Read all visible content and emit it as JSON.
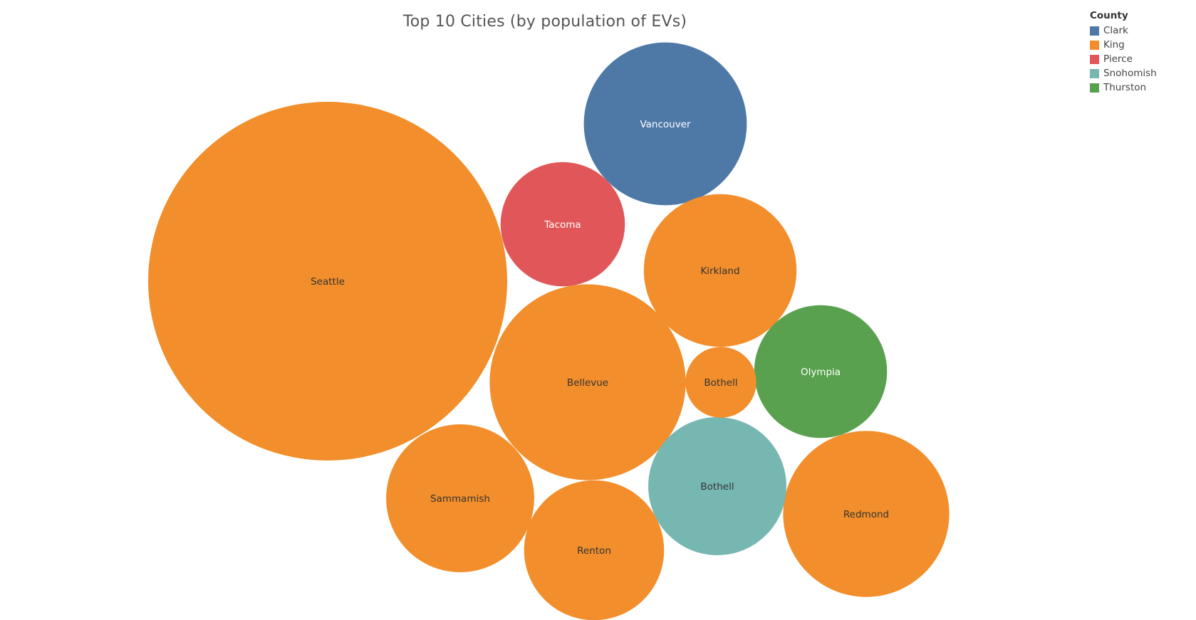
{
  "chart_data": {
    "type": "packed-bubble",
    "title": "Top 10 Cities (by population of EVs)",
    "legend": {
      "title": "County",
      "placement": "top-right",
      "items": [
        {
          "label": "Clark",
          "color": "#4e79a7"
        },
        {
          "label": "King",
          "color": "#f28e2b"
        },
        {
          "label": "Pierce",
          "color": "#e15759"
        },
        {
          "label": "Snohomish",
          "color": "#76b7b2"
        },
        {
          "label": "Thurston",
          "color": "#59a14f"
        }
      ]
    },
    "bubbles": [
      {
        "city": "Seattle",
        "county": "King",
        "relative_size": 100
      },
      {
        "city": "Bellevue",
        "county": "King",
        "relative_size": 29.8
      },
      {
        "city": "Redmond",
        "county": "King",
        "relative_size": 21.4
      },
      {
        "city": "Vancouver",
        "county": "Clark",
        "relative_size": 20.6
      },
      {
        "city": "Kirkland",
        "county": "King",
        "relative_size": 18.1
      },
      {
        "city": "Sammamish",
        "county": "King",
        "relative_size": 17.0
      },
      {
        "city": "Renton",
        "county": "King",
        "relative_size": 15.2
      },
      {
        "city": "Bothell",
        "county": "Snohomish",
        "relative_size": 14.8
      },
      {
        "city": "Olympia",
        "county": "Thurston",
        "relative_size": 13.7
      },
      {
        "city": "Tacoma",
        "county": "Pierce",
        "relative_size": 12.0
      },
      {
        "city": "Bothell",
        "county": "King",
        "relative_size": 3.9
      }
    ]
  }
}
